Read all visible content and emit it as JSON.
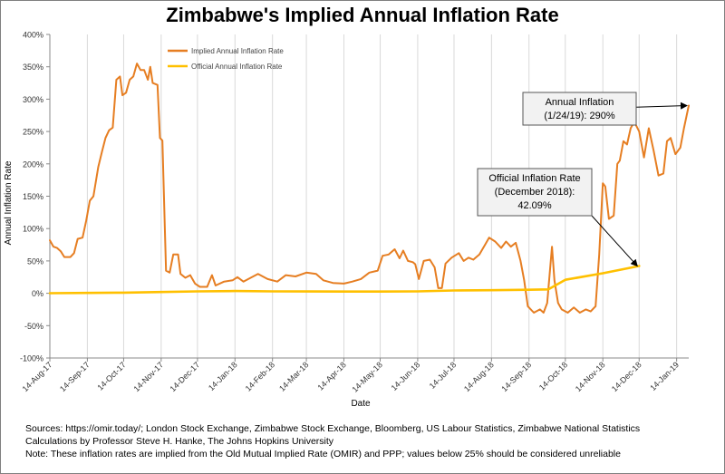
{
  "chart_data": {
    "type": "line",
    "title": "Zimbabwe's Implied Annual Inflation Rate",
    "xlabel": "Date",
    "ylabel": "Annual Inflation Rate",
    "ylim": [
      -100,
      400
    ],
    "yticks": [
      "-100%",
      "-50%",
      "0%",
      "50%",
      "100%",
      "150%",
      "200%",
      "250%",
      "300%",
      "350%",
      "400%"
    ],
    "xlim": [
      "2017-08-14",
      "2019-01-24"
    ],
    "xticks": [
      "14-Aug-17",
      "14-Sep-17",
      "14-Oct-17",
      "14-Nov-17",
      "14-Dec-17",
      "14-Jan-18",
      "14-Feb-18",
      "14-Mar-18",
      "14-Apr-18",
      "14-May-18",
      "14-Jun-18",
      "14-Jul-18",
      "14-Aug-18",
      "14-Sep-18",
      "14-Oct-18",
      "14-Nov-18",
      "14-Dec-18",
      "14-Jan-19"
    ],
    "grid": "vertical",
    "legend": "top-left",
    "series": [
      {
        "name": "Implied Annual Inflation Rate",
        "color": "#e67e22",
        "points": [
          [
            "2017-08-14",
            82
          ],
          [
            "2017-08-17",
            72
          ],
          [
            "2017-08-20",
            70
          ],
          [
            "2017-08-23",
            65
          ],
          [
            "2017-08-26",
            56
          ],
          [
            "2017-08-31",
            56
          ],
          [
            "2017-09-03",
            62
          ],
          [
            "2017-09-06",
            84
          ],
          [
            "2017-09-10",
            86
          ],
          [
            "2017-09-13",
            112
          ],
          [
            "2017-09-16",
            143
          ],
          [
            "2017-09-19",
            150
          ],
          [
            "2017-09-23",
            195
          ],
          [
            "2017-09-26",
            218
          ],
          [
            "2017-09-29",
            240
          ],
          [
            "2017-10-02",
            252
          ],
          [
            "2017-10-05",
            256
          ],
          [
            "2017-10-08",
            330
          ],
          [
            "2017-10-11",
            335
          ],
          [
            "2017-10-13",
            306
          ],
          [
            "2017-10-16",
            310
          ],
          [
            "2017-10-19",
            330
          ],
          [
            "2017-10-22",
            335
          ],
          [
            "2017-10-25",
            355
          ],
          [
            "2017-10-28",
            345
          ],
          [
            "2017-10-31",
            345
          ],
          [
            "2017-11-03",
            330
          ],
          [
            "2017-11-05",
            350
          ],
          [
            "2017-11-07",
            325
          ],
          [
            "2017-11-11",
            322
          ],
          [
            "2017-11-13",
            240
          ],
          [
            "2017-11-15",
            236
          ],
          [
            "2017-11-18",
            35
          ],
          [
            "2017-11-21",
            32
          ],
          [
            "2017-11-24",
            60
          ],
          [
            "2017-11-28",
            60
          ],
          [
            "2017-11-30",
            30
          ],
          [
            "2017-12-04",
            24
          ],
          [
            "2017-12-08",
            28
          ],
          [
            "2017-12-12",
            15
          ],
          [
            "2017-12-16",
            10
          ],
          [
            "2017-12-22",
            10
          ],
          [
            "2017-12-26",
            28
          ],
          [
            "2017-12-29",
            12
          ],
          [
            "2018-01-05",
            18
          ],
          [
            "2018-01-12",
            20
          ],
          [
            "2018-01-16",
            25
          ],
          [
            "2018-01-21",
            18
          ],
          [
            "2018-01-28",
            25
          ],
          [
            "2018-02-02",
            30
          ],
          [
            "2018-02-10",
            22
          ],
          [
            "2018-02-18",
            18
          ],
          [
            "2018-02-25",
            28
          ],
          [
            "2018-03-05",
            26
          ],
          [
            "2018-03-14",
            32
          ],
          [
            "2018-03-22",
            30
          ],
          [
            "2018-03-28",
            20
          ],
          [
            "2018-04-05",
            16
          ],
          [
            "2018-04-14",
            15
          ],
          [
            "2018-04-21",
            18
          ],
          [
            "2018-04-28",
            22
          ],
          [
            "2018-05-05",
            32
          ],
          [
            "2018-05-12",
            35
          ],
          [
            "2018-05-16",
            58
          ],
          [
            "2018-05-21",
            60
          ],
          [
            "2018-05-26",
            68
          ],
          [
            "2018-05-30",
            54
          ],
          [
            "2018-06-02",
            66
          ],
          [
            "2018-06-06",
            50
          ],
          [
            "2018-06-10",
            48
          ],
          [
            "2018-06-12",
            45
          ],
          [
            "2018-06-15",
            22
          ],
          [
            "2018-06-19",
            50
          ],
          [
            "2018-06-24",
            52
          ],
          [
            "2018-06-28",
            40
          ],
          [
            "2018-07-01",
            8
          ],
          [
            "2018-07-04",
            8
          ],
          [
            "2018-07-07",
            46
          ],
          [
            "2018-07-12",
            55
          ],
          [
            "2018-07-18",
            62
          ],
          [
            "2018-07-22",
            50
          ],
          [
            "2018-07-26",
            55
          ],
          [
            "2018-07-30",
            52
          ],
          [
            "2018-08-04",
            60
          ],
          [
            "2018-08-09",
            76
          ],
          [
            "2018-08-12",
            86
          ],
          [
            "2018-08-17",
            80
          ],
          [
            "2018-08-22",
            70
          ],
          [
            "2018-08-26",
            80
          ],
          [
            "2018-08-30",
            72
          ],
          [
            "2018-09-03",
            78
          ],
          [
            "2018-09-07",
            50
          ],
          [
            "2018-09-10",
            20
          ],
          [
            "2018-09-13",
            -20
          ],
          [
            "2018-09-18",
            -30
          ],
          [
            "2018-09-23",
            -25
          ],
          [
            "2018-09-26",
            -30
          ],
          [
            "2018-09-29",
            -15
          ],
          [
            "2018-10-03",
            72
          ],
          [
            "2018-10-05",
            20
          ],
          [
            "2018-10-08",
            -15
          ],
          [
            "2018-10-11",
            -25
          ],
          [
            "2018-10-16",
            -30
          ],
          [
            "2018-10-21",
            -22
          ],
          [
            "2018-10-26",
            -30
          ],
          [
            "2018-10-31",
            -25
          ],
          [
            "2018-11-04",
            -28
          ],
          [
            "2018-11-08",
            -20
          ],
          [
            "2018-11-11",
            60
          ],
          [
            "2018-11-14",
            170
          ],
          [
            "2018-11-16",
            165
          ],
          [
            "2018-11-19",
            115
          ],
          [
            "2018-11-23",
            120
          ],
          [
            "2018-11-26",
            200
          ],
          [
            "2018-11-28",
            205
          ],
          [
            "2018-12-01",
            235
          ],
          [
            "2018-12-04",
            230
          ],
          [
            "2018-12-07",
            255
          ],
          [
            "2018-12-10",
            265
          ],
          [
            "2018-12-14",
            250
          ],
          [
            "2018-12-18",
            210
          ],
          [
            "2018-12-22",
            255
          ],
          [
            "2018-12-26",
            220
          ],
          [
            "2018-12-30",
            182
          ],
          [
            "2019-01-03",
            185
          ],
          [
            "2019-01-06",
            235
          ],
          [
            "2019-01-09",
            240
          ],
          [
            "2019-01-13",
            215
          ],
          [
            "2019-01-17",
            225
          ],
          [
            "2019-01-20",
            255
          ],
          [
            "2019-01-24",
            290
          ]
        ]
      },
      {
        "name": "Official Annual Inflation Rate",
        "color": "#ffc000",
        "points": [
          [
            "2017-08-14",
            0.1
          ],
          [
            "2017-09-14",
            0.5
          ],
          [
            "2017-10-14",
            1.0
          ],
          [
            "2017-11-14",
            2.0
          ],
          [
            "2017-12-14",
            3.0
          ],
          [
            "2018-01-14",
            3.5
          ],
          [
            "2018-02-14",
            3.0
          ],
          [
            "2018-03-14",
            2.8
          ],
          [
            "2018-04-14",
            2.7
          ],
          [
            "2018-05-14",
            2.7
          ],
          [
            "2018-06-14",
            2.9
          ],
          [
            "2018-07-14",
            4.3
          ],
          [
            "2018-08-14",
            4.8
          ],
          [
            "2018-09-14",
            5.4
          ],
          [
            "2018-09-30",
            6.0
          ],
          [
            "2018-10-14",
            20.9
          ],
          [
            "2018-11-14",
            31.0
          ],
          [
            "2018-12-14",
            42.09
          ]
        ]
      }
    ],
    "annotations": [
      {
        "lines": [
          "Annual Inflation",
          "(1/24/19): 290%"
        ],
        "target": [
          "2019-01-24",
          290
        ]
      },
      {
        "lines": [
          "Official Inflation Rate",
          "(December 2018):",
          "42.09%"
        ],
        "target": [
          "2018-12-14",
          42.09
        ]
      }
    ]
  },
  "footnotes": [
    "Sources: https://omir.today/; London Stock Exchange, Zimbabwe Stock Exchange, Bloomberg, US Labour Statistics, Zimbabwe National Statistics",
    "Calculations by Professor Steve H. Hanke, The Johns Hopkins University",
    "Note: These inflation rates are implied from the Old Mutual Implied Rate (OMIR) and PPP; values below 25% should be considered unreliable"
  ]
}
